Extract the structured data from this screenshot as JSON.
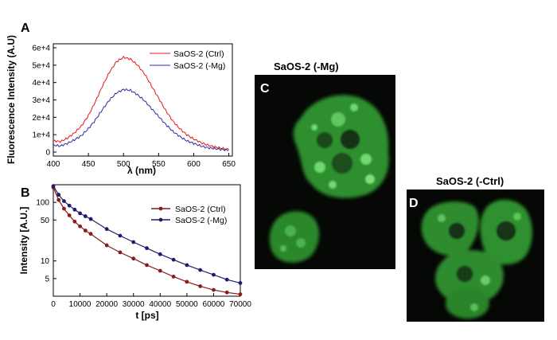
{
  "panels": {
    "A": {
      "letter": "A"
    },
    "B": {
      "letter": "B"
    },
    "C": {
      "letter": "C",
      "title": "SaOS-2 (-Mg)"
    },
    "D": {
      "letter": "D",
      "title": "SaOS-2 (-Ctrl)"
    }
  },
  "colors": {
    "ctrl_A": "#e8161e",
    "mg_A": "#2a2fa0",
    "ctrl_B": "#8b1a1a",
    "mg_B": "#1c1c6e",
    "cell_green": "#3aa83a"
  },
  "chart_data": [
    {
      "type": "line",
      "panel": "A",
      "xlabel": "λ (nm)",
      "ylabel": "Fluorescence Intensity (A.U)",
      "xlim": [
        400,
        655
      ],
      "ylim": [
        0,
        60000
      ],
      "xticks": [
        "400",
        "450",
        "500",
        "550",
        "600",
        "650"
      ],
      "yticks": [
        "0",
        "1e+4",
        "2e+4",
        "3e+4",
        "4e+4",
        "5e+4",
        "6e+4"
      ],
      "legend_position": "top-right",
      "series": [
        {
          "name": "SaOS-2 (Ctrl)",
          "color": "red",
          "x": [
            400,
            410,
            420,
            430,
            440,
            450,
            460,
            470,
            480,
            490,
            500,
            510,
            520,
            530,
            540,
            550,
            560,
            570,
            580,
            590,
            600,
            610,
            620,
            630,
            640,
            650
          ],
          "y": [
            6500,
            6000,
            8000,
            11000,
            15000,
            21000,
            29000,
            38000,
            46000,
            52000,
            54500,
            53500,
            50000,
            45000,
            38000,
            31000,
            24000,
            18000,
            13500,
            10000,
            7500,
            5500,
            4000,
            3000,
            2200,
            1500
          ]
        },
        {
          "name": "SaOS-2 (-Mg)",
          "color": "blue",
          "x": [
            400,
            410,
            420,
            430,
            440,
            450,
            460,
            470,
            480,
            490,
            500,
            510,
            520,
            530,
            540,
            550,
            560,
            570,
            580,
            590,
            600,
            610,
            620,
            630,
            640,
            650
          ],
          "y": [
            4000,
            3500,
            5000,
            7000,
            9500,
            13500,
            18500,
            24500,
            30000,
            34000,
            36000,
            35500,
            33000,
            29500,
            25000,
            20500,
            16000,
            12000,
            9000,
            6500,
            5000,
            3500,
            2500,
            2000,
            1500,
            1000
          ]
        }
      ]
    },
    {
      "type": "line",
      "panel": "B",
      "xlabel": "t [ps]",
      "ylabel": "Intensity [A.U.]",
      "log_y": true,
      "xlim": [
        0,
        70000
      ],
      "ylim": [
        2.5,
        200
      ],
      "xticks": [
        "0",
        "10000",
        "20000",
        "30000",
        "40000",
        "50000",
        "60000",
        "70000"
      ],
      "yticks": [
        "5",
        "10",
        "50",
        "100"
      ],
      "legend_position": "top-right",
      "series": [
        {
          "name": "SaOS-2 (Ctrl)",
          "color": "dark red",
          "x": [
            0,
            2000,
            4000,
            6000,
            8000,
            10000,
            12000,
            14000,
            20000,
            25000,
            30000,
            35000,
            40000,
            45000,
            50000,
            55000,
            60000,
            65000,
            70000
          ],
          "y": [
            180,
            110,
            78,
            60,
            47,
            39,
            33,
            29,
            18.5,
            14,
            11,
            8.5,
            6.8,
            5.4,
            4.4,
            3.7,
            3.2,
            2.9,
            2.7
          ]
        },
        {
          "name": "SaOS-2 (-Mg)",
          "color": "dark blue",
          "x": [
            0,
            2000,
            4000,
            6000,
            8000,
            10000,
            12000,
            14000,
            20000,
            25000,
            30000,
            35000,
            40000,
            45000,
            50000,
            55000,
            60000,
            65000,
            70000
          ],
          "y": [
            190,
            135,
            105,
            88,
            75,
            65,
            58,
            52,
            35,
            27,
            21,
            16.5,
            13,
            10.5,
            8.5,
            7,
            5.8,
            4.8,
            4.2
          ]
        }
      ]
    }
  ]
}
